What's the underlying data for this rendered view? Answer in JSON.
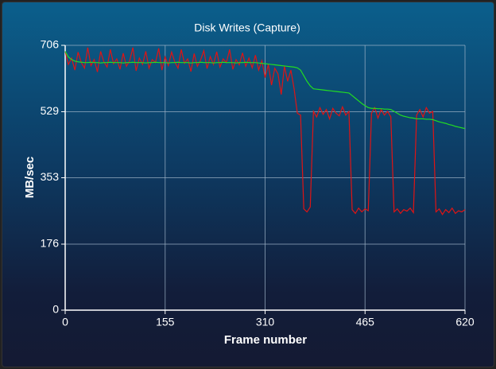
{
  "chart_data": {
    "type": "line",
    "title": "Disk Writes (Capture)",
    "x_label": "Frame number",
    "y_label": "MB/sec",
    "x": [
      0,
      5,
      10,
      15,
      20,
      25,
      30,
      35,
      40,
      45,
      50,
      55,
      60,
      65,
      70,
      75,
      80,
      85,
      90,
      95,
      100,
      105,
      110,
      115,
      120,
      125,
      130,
      135,
      140,
      145,
      150,
      155,
      160,
      165,
      170,
      175,
      180,
      185,
      190,
      195,
      200,
      205,
      210,
      215,
      220,
      225,
      230,
      235,
      240,
      245,
      250,
      255,
      260,
      265,
      270,
      275,
      280,
      285,
      290,
      295,
      300,
      305,
      310,
      315,
      320,
      325,
      330,
      335,
      340,
      345,
      350,
      355,
      360,
      365,
      370,
      375,
      380,
      385,
      390,
      395,
      400,
      405,
      410,
      415,
      420,
      425,
      430,
      435,
      440,
      445,
      450,
      455,
      460,
      465,
      470,
      475,
      480,
      485,
      490,
      495,
      500,
      505,
      510,
      515,
      520,
      525,
      530,
      535,
      540,
      545,
      550,
      555,
      560,
      565,
      570,
      575,
      580,
      585,
      590,
      595,
      600,
      605,
      610,
      615,
      620
    ],
    "series": [
      {
        "color": "#e01414",
        "values": [
          690,
          655,
          672,
          640,
          688,
          660,
          645,
          700,
          652,
          668,
          635,
          690,
          662,
          648,
          695,
          657,
          670,
          642,
          685,
          650,
          665,
          700,
          638,
          672,
          655,
          690,
          645,
          668,
          660,
          698,
          640,
          675,
          652,
          688,
          662,
          645,
          695,
          658,
          670,
          636,
          684,
          650,
          667,
          692,
          644,
          676,
          655,
          689,
          648,
          670,
          660,
          695,
          642,
          668,
          654,
          686,
          650,
          672,
          646,
          680,
          640,
          665,
          620,
          655,
          600,
          645,
          630,
          575,
          650,
          610,
          640,
          590,
          525,
          520,
          270,
          262,
          275,
          530,
          515,
          540,
          522,
          535,
          510,
          538,
          525,
          518,
          542,
          520,
          530,
          268,
          258,
          272,
          262,
          270,
          265,
          525,
          540,
          512,
          535,
          520,
          530,
          515,
          262,
          270,
          258,
          268,
          264,
          272,
          260,
          520,
          535,
          515,
          540,
          525,
          530,
          262,
          270,
          255,
          268,
          260,
          272,
          258,
          265,
          262,
          268
        ]
      },
      {
        "color": "#22dd22",
        "values": [
          690,
          675,
          668,
          664,
          662,
          661,
          660,
          660,
          661,
          660,
          660,
          659,
          660,
          660,
          661,
          660,
          660,
          660,
          659,
          660,
          660,
          661,
          660,
          660,
          660,
          659,
          660,
          660,
          661,
          660,
          660,
          660,
          659,
          660,
          660,
          661,
          660,
          660,
          660,
          659,
          660,
          660,
          661,
          660,
          660,
          660,
          659,
          660,
          660,
          661,
          660,
          660,
          660,
          659,
          660,
          660,
          661,
          660,
          660,
          660,
          659,
          658,
          657,
          656,
          655,
          654,
          653,
          652,
          651,
          650,
          649,
          648,
          646,
          640,
          625,
          610,
          598,
          590,
          589,
          588,
          587,
          586,
          585,
          584,
          583,
          582,
          581,
          580,
          579,
          572,
          565,
          558,
          551,
          545,
          540,
          538,
          538,
          537,
          537,
          536,
          536,
          535,
          530,
          525,
          520,
          517,
          515,
          513,
          512,
          510,
          510,
          510,
          509,
          509,
          508,
          505,
          502,
          500,
          498,
          495,
          493,
          490,
          488,
          486,
          484
        ]
      }
    ],
    "xlim": [
      0,
      620
    ],
    "ylim": [
      0,
      706
    ],
    "xticks": [
      0,
      155,
      310,
      465,
      620
    ],
    "yticks": [
      0,
      176,
      353,
      529,
      706
    ],
    "grid": true
  }
}
